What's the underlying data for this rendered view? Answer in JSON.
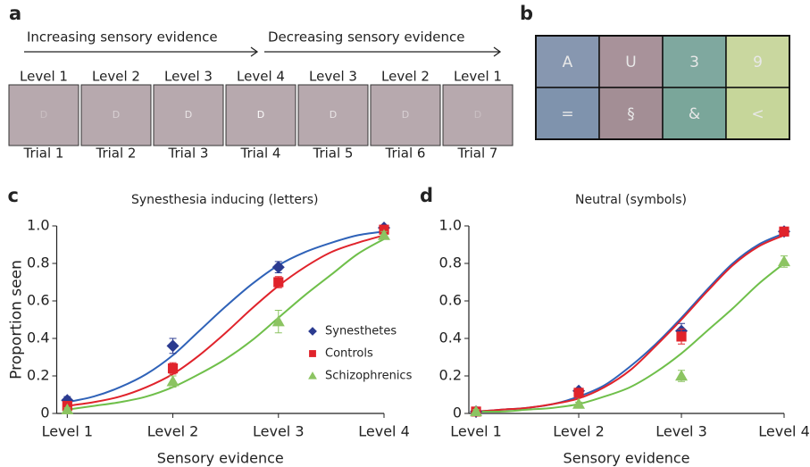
{
  "panel_a": {
    "label": "a",
    "arrows": [
      "Increasing sensory evidence",
      "Decreasing sensory evidence"
    ],
    "levels": [
      "Level 1",
      "Level 2",
      "Level 3",
      "Level 4",
      "Level 3",
      "Level 2",
      "Level 1"
    ],
    "trials": [
      "Trial 1",
      "Trial 2",
      "Trial 3",
      "Trial 4",
      "Trial 5",
      "Trial 6",
      "Trial 7"
    ],
    "stimulus": "D"
  },
  "panel_b": {
    "label": "b",
    "cells": [
      {
        "text": "A",
        "color": "#8797b0"
      },
      {
        "text": "U",
        "color": "#a8929a"
      },
      {
        "text": "3",
        "color": "#7fa89f"
      },
      {
        "text": "9",
        "color": "#c9d79f"
      },
      {
        "text": "=",
        "color": "#7f93ad"
      },
      {
        "text": "§",
        "color": "#a38e95"
      },
      {
        "text": "&",
        "color": "#7aa69a"
      },
      {
        "text": "<",
        "color": "#c6d69a"
      }
    ]
  },
  "chart_data": [
    {
      "type": "scatter",
      "label": "c",
      "title": "Synesthesia inducing (letters)",
      "y_label": "Proportion seen",
      "x_label": "Sensory evidence",
      "x": [
        1,
        2,
        3,
        4
      ],
      "xlim": [
        0.9,
        4
      ],
      "xticks": [
        {
          "value": 1,
          "label": "Level 1"
        },
        {
          "value": 2,
          "label": "Level 2"
        },
        {
          "value": 3,
          "label": "Level 3"
        },
        {
          "value": 4,
          "label": "Level 4"
        }
      ],
      "ylim": [
        0,
        1
      ],
      "yticks": [
        0,
        0.2,
        0.4,
        0.6,
        0.8,
        {
          "value": 1,
          "label": "1.0"
        }
      ],
      "legend": "lower right",
      "fit_x": [
        1,
        1.25,
        1.5,
        1.75,
        2,
        2.25,
        2.5,
        2.75,
        3,
        3.25,
        3.5,
        3.75,
        4
      ],
      "series": [
        {
          "name": "Synesthetes",
          "color": "#2b3b90",
          "curve_color": "#2f62b8",
          "marker": "diamond",
          "values": [
            0.07,
            0.36,
            0.78,
            0.99
          ],
          "errors": [
            0.02,
            0.04,
            0.03,
            0.01
          ],
          "fit": [
            0.06,
            0.09,
            0.14,
            0.21,
            0.31,
            0.44,
            0.57,
            0.69,
            0.79,
            0.86,
            0.91,
            0.95,
            0.97
          ]
        },
        {
          "name": "Controls",
          "color": "#e0232b",
          "curve_color": "#e0232b",
          "marker": "square",
          "values": [
            0.04,
            0.24,
            0.7,
            0.98
          ],
          "errors": [
            0.02,
            0.03,
            0.03,
            0.01
          ],
          "fit": [
            0.04,
            0.06,
            0.09,
            0.14,
            0.21,
            0.31,
            0.43,
            0.56,
            0.68,
            0.78,
            0.86,
            0.91,
            0.95
          ]
        },
        {
          "name": "Schizophrenics",
          "color": "#8cc462",
          "curve_color": "#6fbf4a",
          "marker": "triangle",
          "values": [
            0.02,
            0.17,
            0.49,
            0.95
          ],
          "errors": [
            0.01,
            0.03,
            0.06,
            0.02
          ],
          "fit": [
            0.02,
            0.04,
            0.06,
            0.09,
            0.14,
            0.21,
            0.29,
            0.39,
            0.51,
            0.63,
            0.74,
            0.85,
            0.93
          ]
        }
      ]
    },
    {
      "type": "scatter",
      "label": "d",
      "title": "Neutral (symbols)",
      "x_label": "Sensory evidence",
      "x": [
        1,
        2,
        3,
        4
      ],
      "xlim": [
        0.93,
        4
      ],
      "xticks": [
        {
          "value": 1,
          "label": "Level 1"
        },
        {
          "value": 2,
          "label": "Level 2"
        },
        {
          "value": 3,
          "label": "Level 3"
        },
        {
          "value": 4,
          "label": "Level 4"
        }
      ],
      "ylim": [
        0,
        1
      ],
      "yticks": [
        0,
        0.2,
        0.4,
        0.6,
        0.8,
        {
          "value": 1,
          "label": "1.0"
        }
      ],
      "fit_x": [
        1,
        1.25,
        1.5,
        1.75,
        2,
        2.25,
        2.5,
        2.75,
        3,
        3.25,
        3.5,
        3.75,
        4
      ],
      "series": [
        {
          "color": "#2b3b90",
          "curve_color": "#2f62b8",
          "marker": "diamond",
          "values": [
            0.01,
            0.12,
            0.44,
            0.97
          ],
          "errors": [
            0.01,
            0.01,
            0.04,
            0.02
          ],
          "fit": [
            0.01,
            0.02,
            0.03,
            0.05,
            0.09,
            0.15,
            0.25,
            0.37,
            0.51,
            0.66,
            0.8,
            0.9,
            0.96
          ]
        },
        {
          "color": "#e0232b",
          "curve_color": "#e0232b",
          "marker": "square",
          "values": [
            0.01,
            0.11,
            0.41,
            0.97
          ],
          "errors": [
            0.01,
            0.01,
            0.04,
            0.02
          ],
          "fit": [
            0.01,
            0.02,
            0.03,
            0.05,
            0.08,
            0.14,
            0.23,
            0.36,
            0.5,
            0.65,
            0.79,
            0.89,
            0.95
          ]
        },
        {
          "color": "#8cc462",
          "curve_color": "#6fbf4a",
          "marker": "triangle",
          "values": [
            0.01,
            0.05,
            0.2,
            0.81
          ],
          "errors": [
            0.01,
            0.01,
            0.03,
            0.03
          ],
          "fit": [
            0.01,
            0.01,
            0.02,
            0.03,
            0.05,
            0.09,
            0.14,
            0.22,
            0.32,
            0.44,
            0.56,
            0.69,
            0.8
          ]
        }
      ]
    }
  ]
}
